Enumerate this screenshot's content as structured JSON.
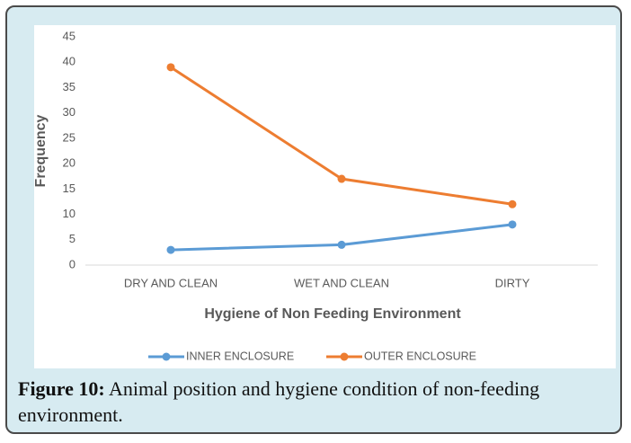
{
  "chart_data": {
    "type": "line",
    "x_label": "Hygiene of Non Feeding Environment",
    "y_label": "Frequency",
    "categories": [
      "DRY AND CLEAN",
      "WET AND CLEAN",
      "DIRTY"
    ],
    "series": [
      {
        "name": "INNER ENCLOSURE",
        "color": "#5b9bd5",
        "values": [
          3,
          4,
          8
        ]
      },
      {
        "name": "OUTER ENCLOSURE",
        "color": "#ed7d31",
        "values": [
          39,
          17,
          12
        ]
      }
    ],
    "ylim": [
      0,
      45
    ],
    "yticks": [
      0,
      5,
      10,
      15,
      20,
      25,
      30,
      35,
      40,
      45
    ],
    "grid": false,
    "legend": "bottom"
  },
  "caption": {
    "label": "Figure 10:",
    "text": "Animal position and hygiene condition of non-feeding environment."
  }
}
